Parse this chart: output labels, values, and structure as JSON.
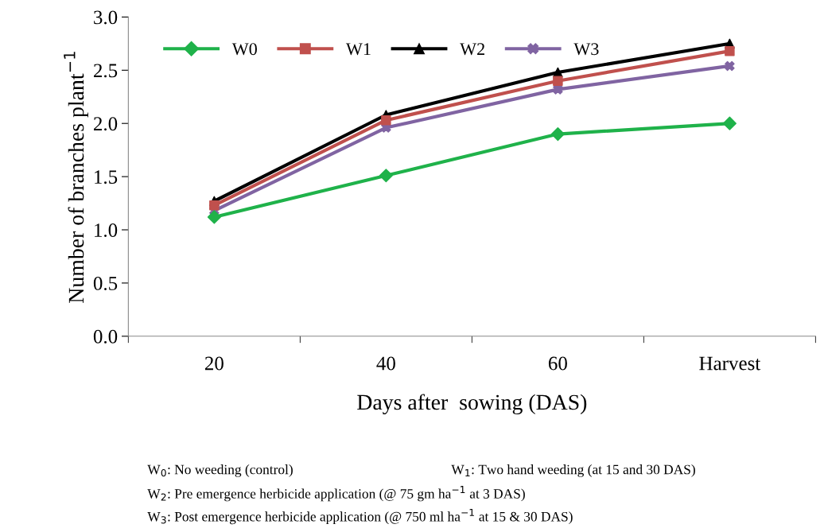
{
  "chart_data": {
    "type": "line",
    "xlabel": "Days after  sowing (DAS)",
    "ylabel": "Number of branches plant$^{−1}$",
    "categories": [
      "20",
      "40",
      "60",
      "Harvest"
    ],
    "series": [
      {
        "name": "W0",
        "color": "#1fb24a",
        "marker": "diamond",
        "values": [
          1.12,
          1.51,
          1.9,
          2.0
        ]
      },
      {
        "name": "W1",
        "color": "#c0504d",
        "marker": "square",
        "values": [
          1.23,
          2.03,
          2.4,
          2.68
        ]
      },
      {
        "name": "W2",
        "color": "#000000",
        "marker": "triangle",
        "values": [
          1.27,
          2.08,
          2.48,
          2.75
        ]
      },
      {
        "name": "W3",
        "color": "#8064a2",
        "marker": "cross",
        "values": [
          1.18,
          1.96,
          2.32,
          2.54
        ]
      }
    ],
    "ylim": [
      0,
      3.0
    ],
    "yticks": [
      {
        "value": 0,
        "label": "0.0"
      },
      {
        "value": 0.5,
        "label": "0.5"
      },
      {
        "value": 1.0,
        "label": "1.0"
      },
      {
        "value": 1.5,
        "label": "1.5"
      },
      {
        "value": 2.0,
        "label": "2.0"
      },
      {
        "value": 2.5,
        "label": "2.5"
      },
      {
        "value": 3.0,
        "label": "3.0"
      }
    ],
    "grid": false,
    "legend": "top left",
    "line_style": "solid",
    "annotations": [
      "W$_{0}$: No weeding (control)",
      "W$_{1}$: Two hand weeding (at 15 and 30 DAS)",
      "W$_{2}$: Pre emergence herbicide application (@ 75 gm ha$^{−1}$ at 3 DAS)",
      "W$_{3}$: Post emergence herbicide application (@ 750 ml ha$^{−1}$ at 15 & 30 DAS)"
    ]
  }
}
